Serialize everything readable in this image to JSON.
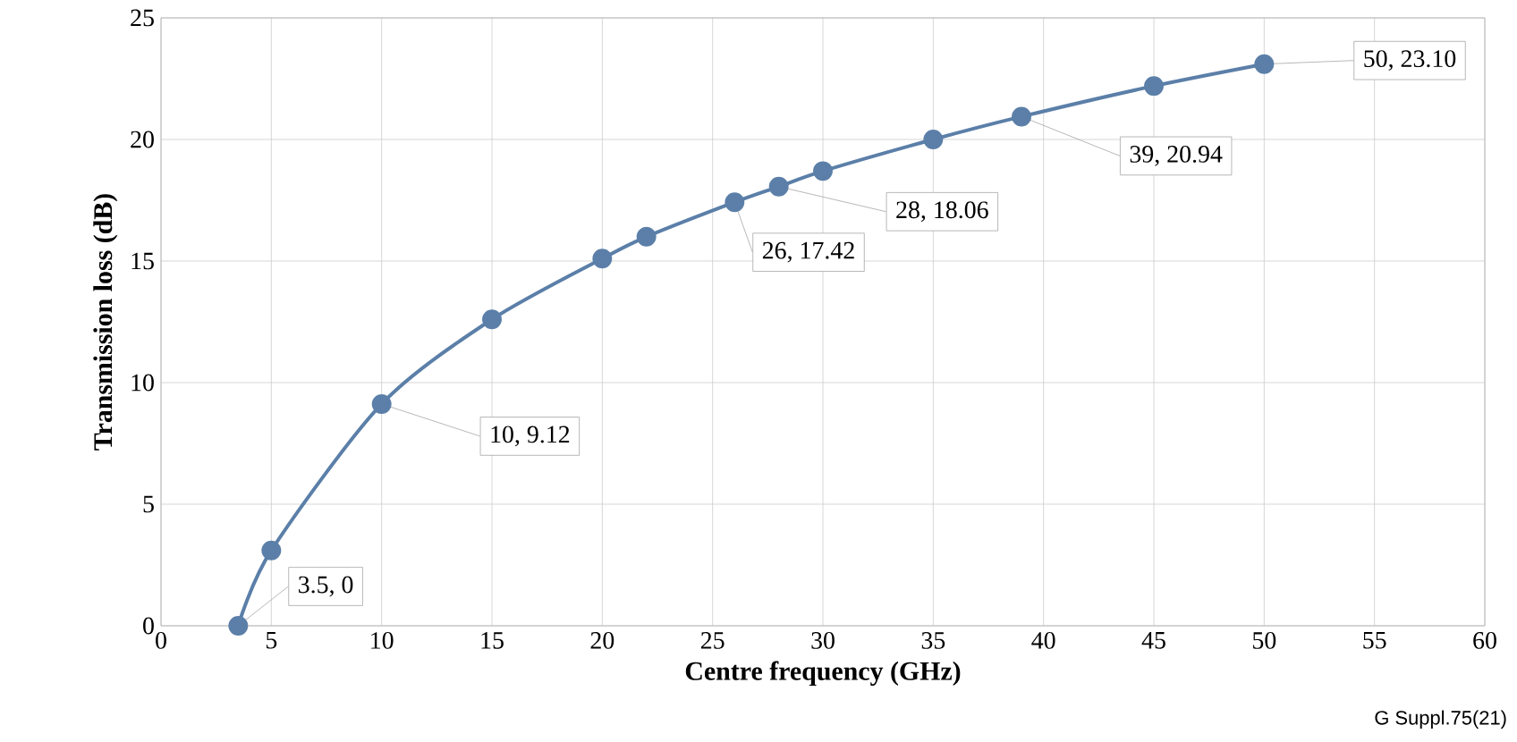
{
  "chart_data": {
    "type": "line",
    "xlabel": "Centre frequency (GHz)",
    "ylabel": "Transmission loss (dB)",
    "x": [
      3.5,
      5,
      10,
      15,
      20,
      22,
      26,
      28,
      30,
      35,
      39,
      45,
      50
    ],
    "series": [
      {
        "color": "#5b7fa8",
        "values": [
          0,
          3.1,
          9.12,
          12.6,
          15.1,
          16.0,
          17.42,
          18.06,
          18.7,
          20.0,
          20.94,
          22.2,
          23.1
        ]
      }
    ],
    "xlim": [
      0,
      60
    ],
    "xticks": [
      0,
      5,
      10,
      15,
      20,
      25,
      30,
      35,
      40,
      45,
      50,
      55,
      60
    ],
    "ylim": [
      0,
      25
    ],
    "yticks": [
      0,
      5,
      10,
      15,
      20,
      25
    ],
    "grid": true,
    "marker": "circle",
    "line_style": "solid",
    "annotations": [
      {
        "text": "3.5, 0",
        "x": 3.5,
        "y": 0
      },
      {
        "text": "10, 9.12",
        "x": 10,
        "y": 9.12
      },
      {
        "text": "26, 17.42",
        "x": 26,
        "y": 17.42
      },
      {
        "text": "28, 18.06",
        "x": 28,
        "y": 18.06
      },
      {
        "text": "39, 20.94",
        "x": 39,
        "y": 20.94
      },
      {
        "text": "50, 23.10",
        "x": 50,
        "y": 23.1
      },
      "G Suppl.75(21)"
    ]
  }
}
